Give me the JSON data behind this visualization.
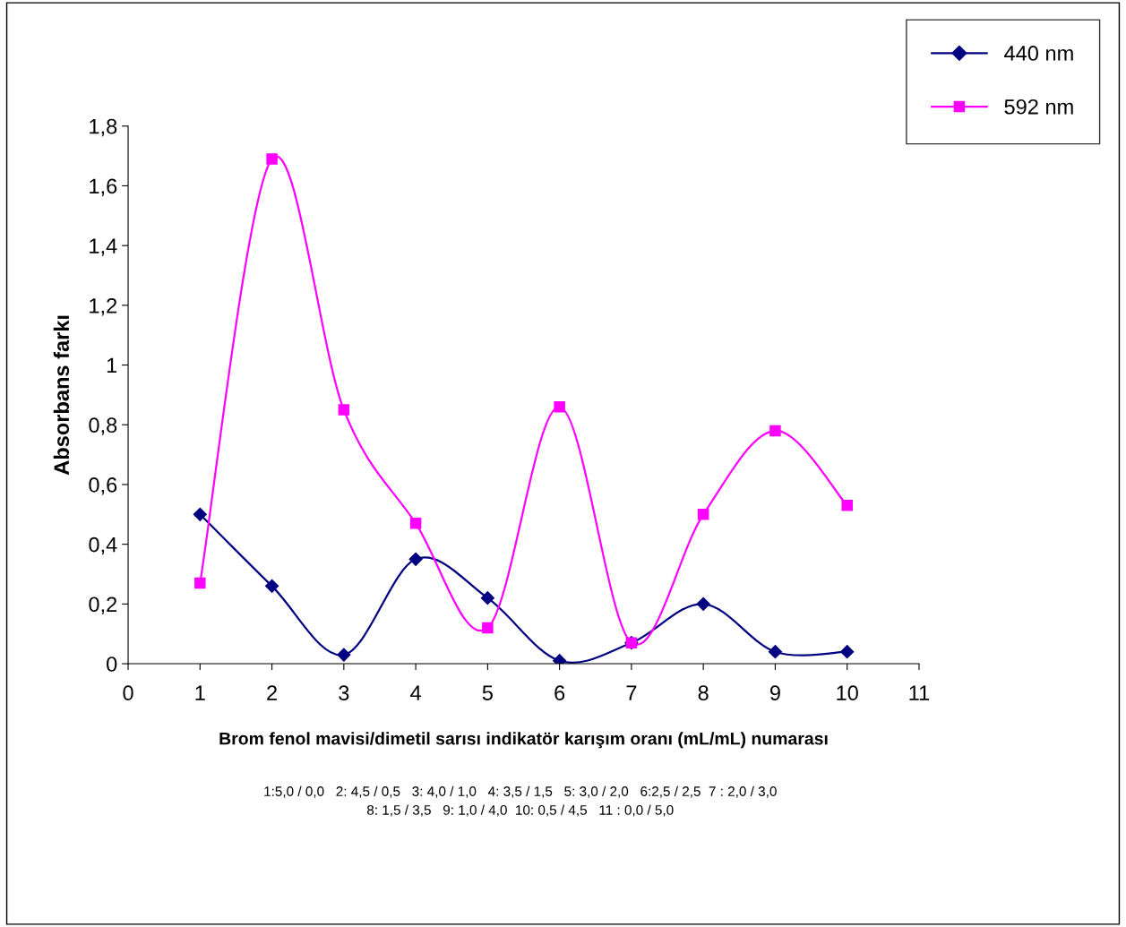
{
  "chart_data": {
    "type": "line",
    "xlabel": "Brom fenol mavisi/dimetil sarısı indikatör karışım oranı (mL/mL) numarası",
    "ylabel": "Absorbans farkı",
    "x": [
      1,
      2,
      3,
      4,
      5,
      6,
      7,
      8,
      9,
      10
    ],
    "series": [
      {
        "name": "440 nm",
        "color": "#000080",
        "marker": "diamond",
        "values": [
          0.5,
          0.26,
          0.03,
          0.35,
          0.22,
          0.01,
          0.07,
          0.2,
          0.04,
          0.04
        ]
      },
      {
        "name": "592 nm",
        "color": "#ff00ff",
        "marker": "square",
        "values": [
          0.27,
          1.69,
          0.85,
          0.47,
          0.12,
          0.86,
          0.07,
          0.5,
          0.78,
          0.53
        ]
      }
    ],
    "xlim": [
      0,
      11
    ],
    "xticks": [
      0,
      1,
      2,
      3,
      4,
      5,
      6,
      7,
      8,
      9,
      10,
      11
    ],
    "ylim": [
      0,
      1.8
    ],
    "yticks": [
      0,
      {
        "value": 0.2,
        "label": "0,2"
      },
      {
        "value": 0.4,
        "label": "0,4"
      },
      {
        "value": 0.6,
        "label": "0,6"
      },
      {
        "value": 0.8,
        "label": "0,8"
      },
      1,
      {
        "value": 1.2,
        "label": "1,2"
      },
      {
        "value": 1.4,
        "label": "1,4"
      },
      {
        "value": 1.6,
        "label": "1,6"
      },
      {
        "value": 1.8,
        "label": "1,8"
      }
    ],
    "grid": false,
    "legend": "top right",
    "line_style": "solid",
    "annotations": [
      "1:5,0 / 0,0   2: 4,5 / 0,5   3: 4,0 / 1,0   4: 3,5 / 1,5   5: 3,0 / 2,0   6:2,5 / 2,5  7 : 2,0 / 3,0\n8: 1,5 / 3,5   9: 1,0 / 4,0  10: 0,5 / 4,5   11 : 0,0 / 5,0"
    ]
  }
}
